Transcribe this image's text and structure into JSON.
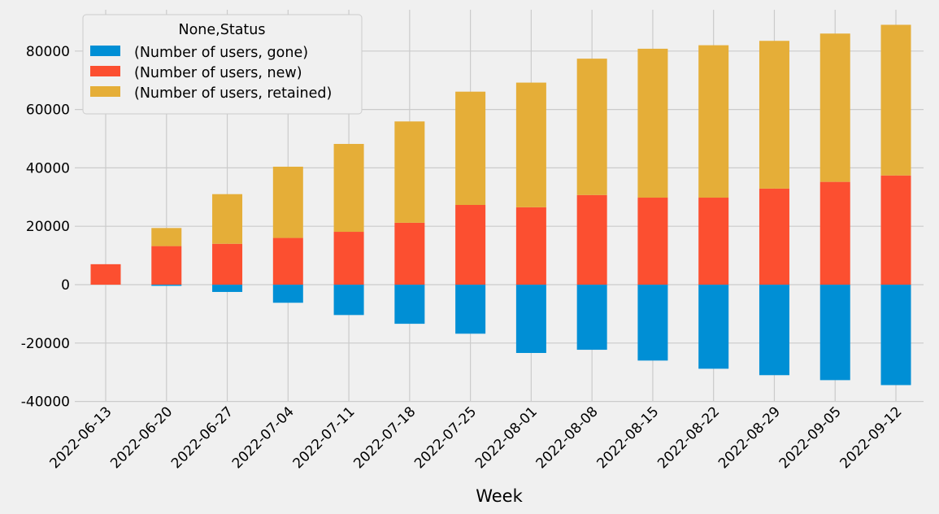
{
  "chart_data": {
    "type": "bar",
    "stacked": true,
    "xlabel": "Week",
    "ylabel": "",
    "ylim": [
      -40000,
      90000
    ],
    "yticks": [
      -40000,
      -20000,
      0,
      20000,
      40000,
      60000,
      80000
    ],
    "grid": true,
    "legend": {
      "title": "None,Status",
      "position": "top-left"
    },
    "categories": [
      "2022-06-13",
      "2022-06-20",
      "2022-06-27",
      "2022-07-04",
      "2022-07-11",
      "2022-07-18",
      "2022-07-25",
      "2022-08-01",
      "2022-08-08",
      "2022-08-15",
      "2022-08-22",
      "2022-08-29",
      "2022-09-05",
      "2022-09-12"
    ],
    "series": [
      {
        "name": "(Number of users, gone)",
        "color": "#008fd5",
        "values": [
          0,
          -400,
          -2500,
          -6200,
          -10400,
          -13400,
          -16800,
          -23400,
          -22300,
          -26000,
          -28800,
          -31000,
          -32700,
          -34400
        ]
      },
      {
        "name": "(Number of users, new)",
        "color": "#fc4f30",
        "values": [
          7000,
          13200,
          14000,
          16000,
          18100,
          21200,
          27300,
          26500,
          30700,
          29800,
          29800,
          32900,
          35200,
          37400
        ]
      },
      {
        "name": "(Number of users, retained)",
        "color": "#e5ae38",
        "values": [
          0,
          6200,
          17000,
          24400,
          30100,
          34700,
          38800,
          42700,
          46700,
          51000,
          52200,
          50600,
          50800,
          51600
        ]
      }
    ]
  }
}
